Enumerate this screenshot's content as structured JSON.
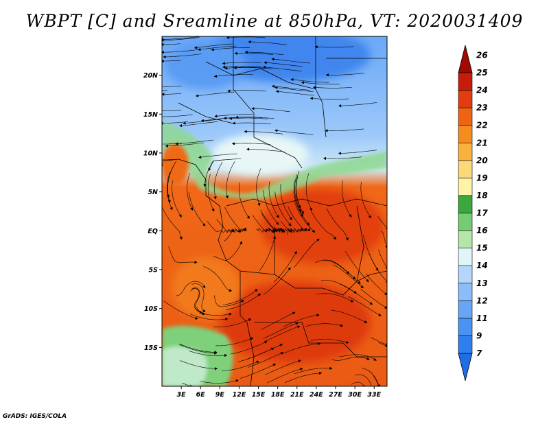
{
  "title": "WBPT [C] and Sreamline at 850hPa, VT: 2020031409",
  "credit": "GrADS: IGES/COLA",
  "map": {
    "lon_range": [
      0,
      35
    ],
    "lat_range": [
      -20,
      25
    ],
    "lat_ticks": [
      {
        "lat": 20,
        "label": "20N"
      },
      {
        "lat": 15,
        "label": "15N"
      },
      {
        "lat": 10,
        "label": "10N"
      },
      {
        "lat": 5,
        "label": "5N"
      },
      {
        "lat": 0,
        "label": "EQ"
      },
      {
        "lat": -5,
        "label": "5S"
      },
      {
        "lat": -10,
        "label": "10S"
      },
      {
        "lat": -15,
        "label": "15S"
      }
    ],
    "lon_ticks": [
      {
        "lon": 3,
        "label": "3E"
      },
      {
        "lon": 6,
        "label": "6E"
      },
      {
        "lon": 9,
        "label": "9E"
      },
      {
        "lon": 12,
        "label": "12E"
      },
      {
        "lon": 15,
        "label": "15E"
      },
      {
        "lon": 18,
        "label": "18E"
      },
      {
        "lon": 21,
        "label": "21E"
      },
      {
        "lon": 24,
        "label": "24E"
      },
      {
        "lon": 27,
        "label": "27E"
      },
      {
        "lon": 30,
        "label": "30E"
      },
      {
        "lon": 33,
        "label": "33E"
      }
    ]
  },
  "colorbar": {
    "levels": [
      "7",
      "9",
      "11",
      "12",
      "13",
      "14",
      "15",
      "16",
      "17",
      "18",
      "19",
      "20",
      "21",
      "22",
      "23",
      "24",
      "25",
      "26"
    ],
    "colors": [
      "#1e6fe6",
      "#2e80f0",
      "#4a92f4",
      "#67a6f7",
      "#8cbcfa",
      "#b4d6fc",
      "#e1f4f7",
      "#b4e6a8",
      "#76cc72",
      "#3aa83c",
      "#fff3a8",
      "#fdd878",
      "#f9b23c",
      "#f58c1e",
      "#ef6414",
      "#e23c10",
      "#c81c0a",
      "#a00a00"
    ]
  }
}
